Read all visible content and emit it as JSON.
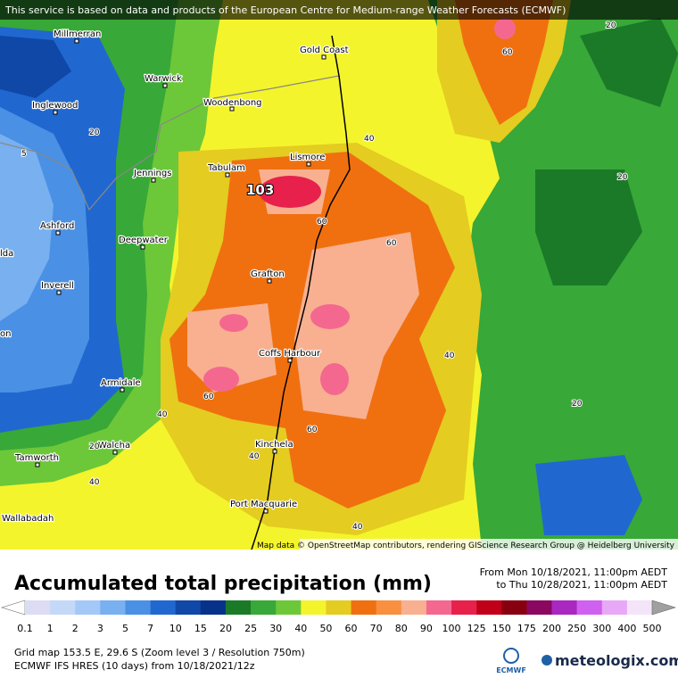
{
  "banner": "This service is based on data and products of the European Centre for Medium-range Weather Forecasts (ECMWF)",
  "places": [
    "Millmerran",
    "Gold Coast",
    "Warwick",
    "Woodenbong",
    "Inglewood",
    "Lismore",
    "Tabulam",
    "Jennings",
    "Ashford",
    "Deepwater",
    "Grafton",
    "Inverell",
    "Coffs Harbour",
    "Armidale",
    "Walcha",
    "Kinchela",
    "Tamworth",
    "Port Macquarie",
    "Wallabadah",
    "lda",
    "on"
  ],
  "peak_label": 103,
  "contour_labels": [
    20,
    5,
    40,
    60,
    20,
    60,
    60,
    20,
    40,
    60,
    40,
    20,
    60,
    40,
    40,
    20,
    40
  ],
  "attribution": "Map data © OpenStreetMap contributors, rendering GIScience Research Group @ Heidelberg University",
  "title": "Accumulated total precipitation (mm)",
  "period": {
    "from": "From Mon 10/18/2021, 11:00pm AEDT",
    "to": "to Thu 10/28/2021, 11:00pm AEDT"
  },
  "legend": {
    "labels": [
      0.1,
      1,
      2,
      3,
      5,
      7,
      10,
      15,
      20,
      25,
      30,
      40,
      50,
      60,
      70,
      80,
      90,
      100,
      125,
      150,
      175,
      200,
      250,
      300,
      400,
      500
    ],
    "colors": [
      "#ffffff",
      "#dcdcf4",
      "#c4d8f8",
      "#a4c8f8",
      "#78b0f0",
      "#4a90e4",
      "#2068d0",
      "#1048a8",
      "#08328a",
      "#1a7a28",
      "#38a838",
      "#6cc838",
      "#f4f42c",
      "#e4cc20",
      "#f07010",
      "#f89040",
      "#f8b090",
      "#f46890",
      "#e8204c",
      "#c00018",
      "#880010",
      "#8a0860",
      "#a828c0",
      "#d060f0",
      "#e8a8f8",
      "#f4e4fa",
      "#d8d8d8",
      "#a0a0a0"
    ]
  },
  "footer": {
    "line1": "Grid map 153.5 E, 29.6 S (Zoom level 3 / Resolution 750m)",
    "line2": "ECMWF IFS HRES (10 days) from 10/18/2021/12z"
  },
  "logos": {
    "ecmwf": "ECMWF",
    "brand": "meteologix.com"
  }
}
